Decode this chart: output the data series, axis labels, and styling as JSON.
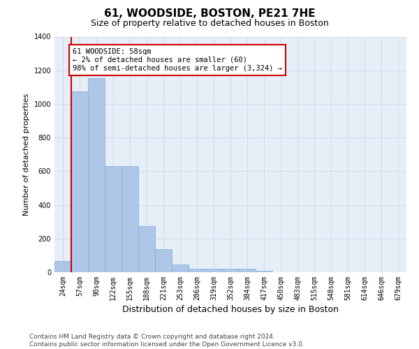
{
  "title": "61, WOODSIDE, BOSTON, PE21 7HE",
  "subtitle": "Size of property relative to detached houses in Boston",
  "xlabel": "Distribution of detached houses by size in Boston",
  "ylabel": "Number of detached properties",
  "categories": [
    "24sqm",
    "57sqm",
    "90sqm",
    "122sqm",
    "155sqm",
    "188sqm",
    "221sqm",
    "253sqm",
    "286sqm",
    "319sqm",
    "352sqm",
    "384sqm",
    "417sqm",
    "450sqm",
    "483sqm",
    "515sqm",
    "548sqm",
    "581sqm",
    "614sqm",
    "646sqm",
    "679sqm"
  ],
  "values": [
    65,
    1075,
    1155,
    630,
    630,
    275,
    135,
    45,
    20,
    20,
    20,
    20,
    10,
    0,
    0,
    0,
    0,
    0,
    0,
    0,
    0
  ],
  "bar_color": "#aec6e8",
  "bar_edge_color": "#7bafd4",
  "vline_x": 0.5,
  "vline_color": "#cc0000",
  "annotation_text": "61 WOODSIDE: 58sqm\n← 2% of detached houses are smaller (60)\n98% of semi-detached houses are larger (3,324) →",
  "annotation_box_color": "#ffffff",
  "annotation_box_edge_color": "#cc0000",
  "ylim": [
    0,
    1400
  ],
  "yticks": [
    0,
    200,
    400,
    600,
    800,
    1000,
    1200,
    1400
  ],
  "grid_color": "#d0d8e8",
  "bg_color": "#e8eef8",
  "footer_line1": "Contains HM Land Registry data © Crown copyright and database right 2024.",
  "footer_line2": "Contains public sector information licensed under the Open Government Licence v3.0.",
  "title_fontsize": 11,
  "subtitle_fontsize": 9,
  "xlabel_fontsize": 9,
  "ylabel_fontsize": 8,
  "tick_fontsize": 7,
  "annotation_fontsize": 7.5,
  "footer_fontsize": 6.5
}
